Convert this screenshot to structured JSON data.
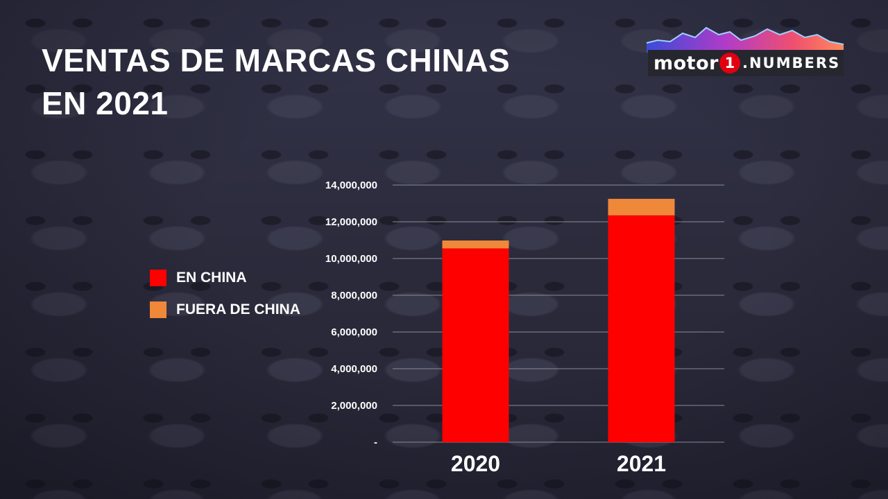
{
  "title": "VENTAS DE MARCAS CHINAS\n EN 2021",
  "logo": {
    "word": "motor",
    "one": "1",
    "suffix": ".NUMBERS"
  },
  "colors": {
    "en_china": "#ff0000",
    "fuera_de_china": "#f0883a",
    "grid": "#8a8a96",
    "text": "#ffffff"
  },
  "icons": {
    "logo_mountains": "mountain-skyline-icon"
  },
  "chart_data": {
    "type": "bar",
    "stacked": true,
    "categories": [
      "2020",
      "2021"
    ],
    "series": [
      {
        "name": "EN CHINA",
        "values": [
          10550000,
          12350000
        ]
      },
      {
        "name": "FUERA DE CHINA",
        "values": [
          430000,
          900000
        ]
      }
    ],
    "ylim": [
      0,
      14000000
    ],
    "yticks": [
      0,
      2000000,
      4000000,
      6000000,
      8000000,
      10000000,
      12000000,
      14000000
    ],
    "ytick_labels": [
      "-",
      "2,000,000",
      "4,000,000",
      "6,000,000",
      "8,000,000",
      "10,000,000",
      "12,000,000",
      "14,000,000"
    ],
    "grid": true,
    "legend": "left",
    "title": "",
    "xlabel": "",
    "ylabel": ""
  }
}
